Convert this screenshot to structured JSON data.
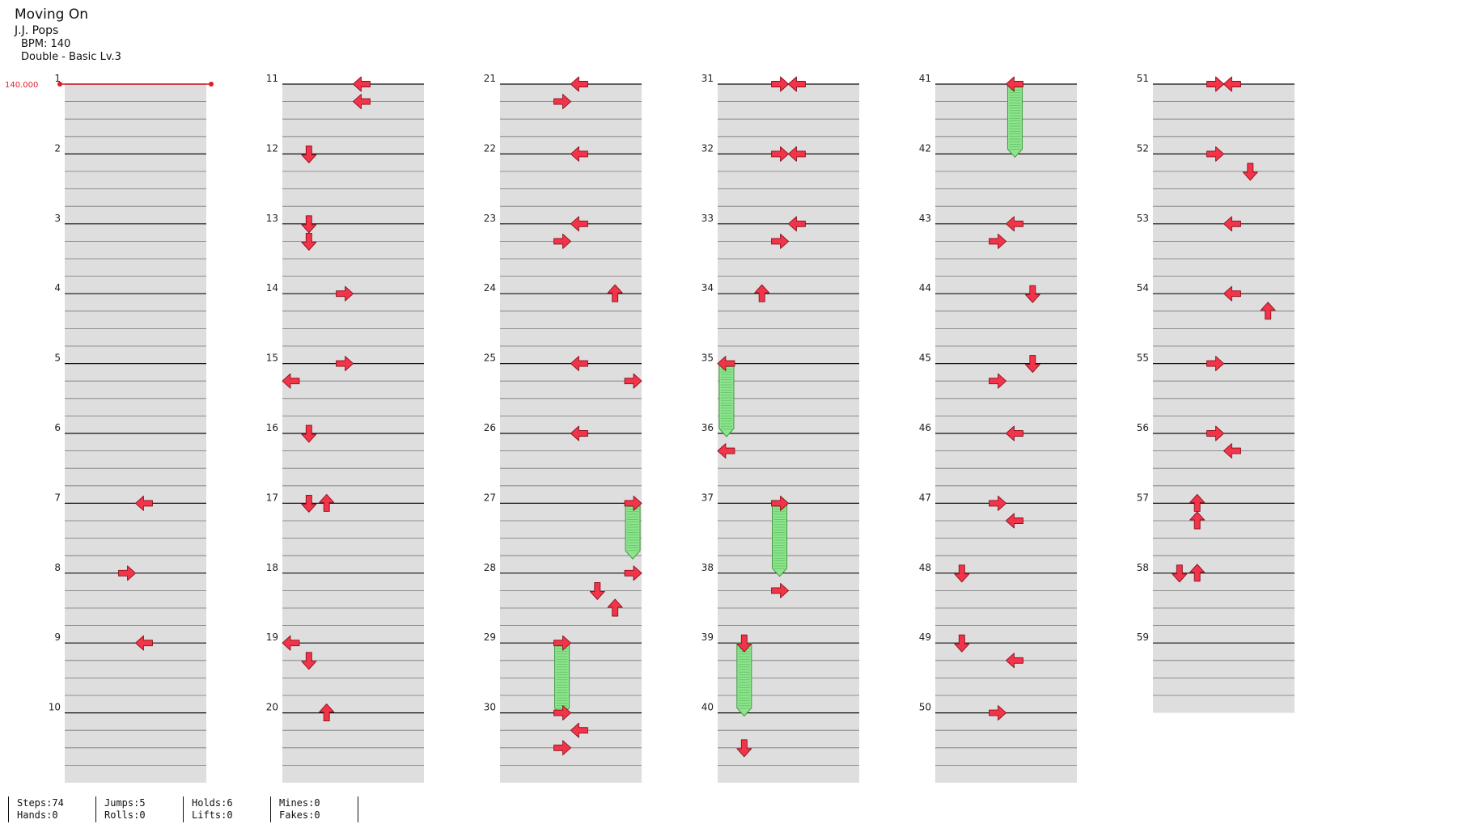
{
  "song": {
    "title": "Moving On",
    "artist": "J.J. Pops",
    "bpm_label": "BPM: 140",
    "chart_label": "Double - Basic Lv.3"
  },
  "bpm_marker": "140.000",
  "measure_count": 59,
  "lanes": 8,
  "arrow_directions": [
    "left",
    "down",
    "up",
    "right",
    "left",
    "down",
    "up",
    "right"
  ],
  "notes": [
    {
      "m": 7,
      "b": 0,
      "lane": 4
    },
    {
      "m": 8,
      "b": 0,
      "lane": 3
    },
    {
      "m": 9,
      "b": 0,
      "lane": 4
    },
    {
      "m": 11,
      "b": 0,
      "lane": 4
    },
    {
      "m": 11,
      "b": 1,
      "lane": 4
    },
    {
      "m": 12,
      "b": 0,
      "lane": 1
    },
    {
      "m": 13,
      "b": 0,
      "lane": 1
    },
    {
      "m": 13,
      "b": 1,
      "lane": 1
    },
    {
      "m": 14,
      "b": 0,
      "lane": 3
    },
    {
      "m": 15,
      "b": 0,
      "lane": 3
    },
    {
      "m": 15,
      "b": 1,
      "lane": 0
    },
    {
      "m": 16,
      "b": 0,
      "lane": 1
    },
    {
      "m": 17,
      "b": 0,
      "lane": 1
    },
    {
      "m": 17,
      "b": 0,
      "lane": 2
    },
    {
      "m": 19,
      "b": 0,
      "lane": 0
    },
    {
      "m": 19,
      "b": 1,
      "lane": 1
    },
    {
      "m": 20,
      "b": 0,
      "lane": 2
    },
    {
      "m": 21,
      "b": 0,
      "lane": 4
    },
    {
      "m": 21,
      "b": 1,
      "lane": 3
    },
    {
      "m": 22,
      "b": 0,
      "lane": 4
    },
    {
      "m": 23,
      "b": 0,
      "lane": 4
    },
    {
      "m": 23,
      "b": 1,
      "lane": 3
    },
    {
      "m": 24,
      "b": 0,
      "lane": 6
    },
    {
      "m": 25,
      "b": 0,
      "lane": 4
    },
    {
      "m": 25,
      "b": 1,
      "lane": 7
    },
    {
      "m": 26,
      "b": 0,
      "lane": 4
    },
    {
      "m": 27,
      "b": 0,
      "lane": 7,
      "hold": 3
    },
    {
      "m": 28,
      "b": 0,
      "lane": 7
    },
    {
      "m": 28,
      "b": 1,
      "lane": 5
    },
    {
      "m": 28,
      "b": 2,
      "lane": 6
    },
    {
      "m": 29,
      "b": 0,
      "lane": 3,
      "hold": 4
    },
    {
      "m": 30,
      "b": 0,
      "lane": 3
    },
    {
      "m": 30,
      "b": 1,
      "lane": 4
    },
    {
      "m": 30,
      "b": 2,
      "lane": 3
    },
    {
      "m": 31,
      "b": 0,
      "lane": 3
    },
    {
      "m": 31,
      "b": 0,
      "lane": 4
    },
    {
      "m": 32,
      "b": 0,
      "lane": 3
    },
    {
      "m": 32,
      "b": 0,
      "lane": 4
    },
    {
      "m": 33,
      "b": 0,
      "lane": 4
    },
    {
      "m": 33,
      "b": 1,
      "lane": 3
    },
    {
      "m": 34,
      "b": 0,
      "lane": 2
    },
    {
      "m": 35,
      "b": 0,
      "lane": 0,
      "hold": 4
    },
    {
      "m": 36,
      "b": 1,
      "lane": 0
    },
    {
      "m": 37,
      "b": 0,
      "lane": 3,
      "hold": 4
    },
    {
      "m": 38,
      "b": 1,
      "lane": 3
    },
    {
      "m": 39,
      "b": 0,
      "lane": 1,
      "hold": 4
    },
    {
      "m": 40,
      "b": 2,
      "lane": 1
    },
    {
      "m": 41,
      "b": 0,
      "lane": 4,
      "hold": 4
    },
    {
      "m": 43,
      "b": 0,
      "lane": 4
    },
    {
      "m": 43,
      "b": 1,
      "lane": 3
    },
    {
      "m": 44,
      "b": 0,
      "lane": 5
    },
    {
      "m": 45,
      "b": 0,
      "lane": 5
    },
    {
      "m": 45,
      "b": 1,
      "lane": 3
    },
    {
      "m": 46,
      "b": 0,
      "lane": 4
    },
    {
      "m": 47,
      "b": 0,
      "lane": 3
    },
    {
      "m": 47,
      "b": 1,
      "lane": 4
    },
    {
      "m": 48,
      "b": 0,
      "lane": 1
    },
    {
      "m": 49,
      "b": 0,
      "lane": 1
    },
    {
      "m": 49,
      "b": 1,
      "lane": 4
    },
    {
      "m": 50,
      "b": 0,
      "lane": 3
    },
    {
      "m": 51,
      "b": 0,
      "lane": 3
    },
    {
      "m": 51,
      "b": 0,
      "lane": 4
    },
    {
      "m": 52,
      "b": 0,
      "lane": 3
    },
    {
      "m": 52,
      "b": 1,
      "lane": 5
    },
    {
      "m": 53,
      "b": 0,
      "lane": 4
    },
    {
      "m": 54,
      "b": 0,
      "lane": 4
    },
    {
      "m": 54,
      "b": 1,
      "lane": 6
    },
    {
      "m": 55,
      "b": 0,
      "lane": 3
    },
    {
      "m": 56,
      "b": 0,
      "lane": 3
    },
    {
      "m": 56,
      "b": 1,
      "lane": 4
    },
    {
      "m": 57,
      "b": 0,
      "lane": 2
    },
    {
      "m": 57,
      "b": 1,
      "lane": 2
    },
    {
      "m": 58,
      "b": 0,
      "lane": 1
    },
    {
      "m": 58,
      "b": 0,
      "lane": 2
    }
  ],
  "stats": [
    {
      "top": "Steps:74",
      "bottom": "Hands:0"
    },
    {
      "top": "Jumps:5",
      "bottom": "Rolls:0"
    },
    {
      "top": "Holds:6",
      "bottom": "Lifts:0"
    },
    {
      "top": "Mines:0",
      "bottom": "Fakes:0"
    }
  ],
  "colors": {
    "arrow": "#f2344a",
    "arrow_stroke": "#8a0f1c",
    "hold": "#8ee38e",
    "hold_stroke": "#3d9b3d",
    "band": "#dedede",
    "bpm": "#e01b2a"
  }
}
